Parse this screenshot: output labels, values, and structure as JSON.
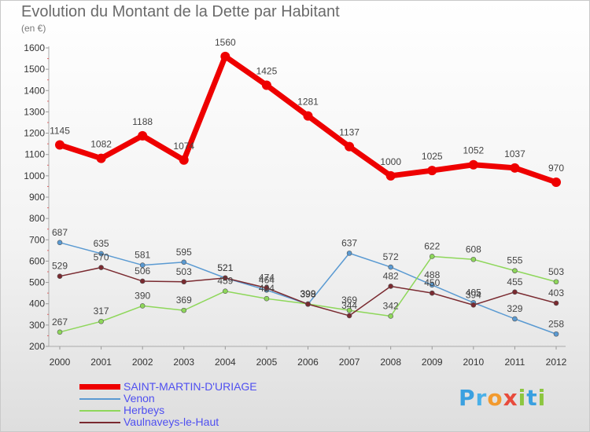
{
  "title": "Evolution du Montant de la Dette par Habitant",
  "subtitle": "(en €)",
  "logo": {
    "text": "Proxiti",
    "letters": [
      {
        "ch": "P",
        "color": "#3aa0e0"
      },
      {
        "ch": "r",
        "color": "#4ab0e8"
      },
      {
        "ch": "o",
        "color": "#f29a2e"
      },
      {
        "ch": "x",
        "color": "#e84b3c"
      },
      {
        "ch": "i",
        "color": "#8cc63f"
      },
      {
        "ch": "t",
        "color": "#3aa0e0"
      },
      {
        "ch": "i",
        "color": "#8cc63f"
      }
    ]
  },
  "chart_data": {
    "type": "line",
    "title": "Evolution du Montant de la Dette par Habitant",
    "subtitle": "(en €)",
    "x": [
      "2000",
      "2001",
      "2002",
      "2003",
      "2004",
      "2005",
      "2006",
      "2007",
      "2008",
      "2009",
      "2010",
      "2011",
      "2012"
    ],
    "ylim": [
      200,
      1600
    ],
    "yticks": [
      200,
      300,
      400,
      500,
      600,
      700,
      800,
      900,
      1000,
      1100,
      1200,
      1300,
      1400,
      1500,
      1600
    ],
    "grid": false,
    "legend_position": "bottom-left",
    "series": [
      {
        "name": "SAINT-MARTIN-D'URIAGE",
        "color": "#ee0000",
        "label_color": "#4f4ff0",
        "width": 7,
        "radius": 6,
        "values": [
          1145,
          1082,
          1188,
          1074,
          1560,
          1425,
          1281,
          1137,
          1000,
          1025,
          1052,
          1037,
          970
        ]
      },
      {
        "name": "Venon",
        "color": "#5a9ad2",
        "label_color": "#4f4ff0",
        "width": 1.5,
        "radius": 3,
        "values": [
          687,
          635,
          581,
          595,
          521,
          464,
          398,
          637,
          572,
          488,
          405,
          329,
          258
        ]
      },
      {
        "name": "Herbeys",
        "color": "#8ed75a",
        "label_color": "#4f4ff0",
        "width": 1.5,
        "radius": 3,
        "values": [
          267,
          317,
          390,
          369,
          459,
          424,
          399,
          369,
          342,
          622,
          608,
          555,
          503
        ]
      },
      {
        "name": "Vaulnaveys-le-Haut",
        "color": "#7a2a30",
        "label_color": "#4f4ff0",
        "width": 1.5,
        "radius": 3,
        "values": [
          529,
          570,
          506,
          503,
          521,
          474,
          398,
          344,
          482,
          450,
          394,
          455,
          403
        ]
      }
    ],
    "data_labels": [
      [
        "1145",
        "1082",
        "1188",
        "1074",
        "1560",
        "1425",
        "1281",
        "1137",
        "1000",
        "1025",
        "1052",
        "1037",
        "970"
      ],
      [
        "687",
        "635",
        "581",
        "595",
        "521",
        "464",
        "398",
        "637",
        "572",
        "488",
        "405",
        "329",
        "258"
      ],
      [
        "267",
        "317",
        "390",
        "369",
        "459",
        "424",
        "399",
        "369",
        "342",
        "622",
        "608",
        "555",
        "503"
      ],
      [
        "529",
        "570",
        "506",
        "503",
        "521",
        "474",
        "398",
        "344",
        "482",
        "450",
        "394",
        "455",
        "403"
      ]
    ]
  }
}
